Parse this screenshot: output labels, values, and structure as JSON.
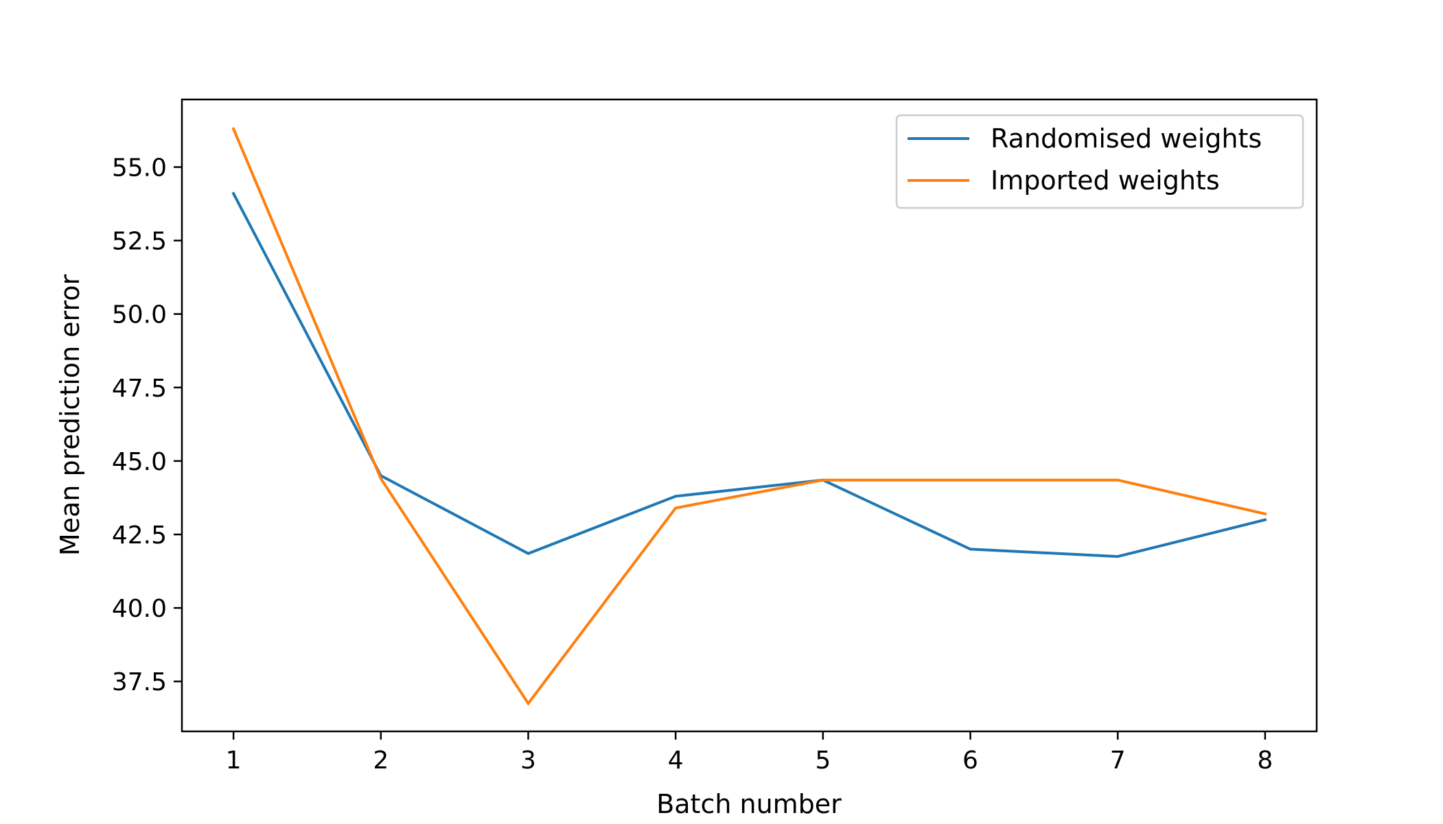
{
  "chart_data": {
    "type": "line",
    "title": "",
    "xlabel": "Batch number",
    "ylabel": "Mean prediction error",
    "x": [
      1,
      2,
      3,
      4,
      5,
      6,
      7,
      8
    ],
    "xticks": [
      "1",
      "2",
      "3",
      "4",
      "5",
      "6",
      "7",
      "8"
    ],
    "yticks": [
      "37.5",
      "40.0",
      "42.5",
      "45.0",
      "47.5",
      "50.0",
      "52.5",
      "55.0"
    ],
    "xlim": [
      0.65,
      8.35
    ],
    "ylim": [
      35.8,
      57.3
    ],
    "grid": false,
    "legend_position": "top-right",
    "series": [
      {
        "name": "Randomised weights",
        "color": "#1f77b4",
        "values": [
          54.1,
          44.5,
          41.85,
          43.8,
          44.35,
          42.0,
          41.75,
          43.0
        ]
      },
      {
        "name": "Imported weights",
        "color": "#ff7f0e",
        "values": [
          56.3,
          44.4,
          36.75,
          43.4,
          44.35,
          44.35,
          44.35,
          43.2
        ]
      }
    ]
  }
}
